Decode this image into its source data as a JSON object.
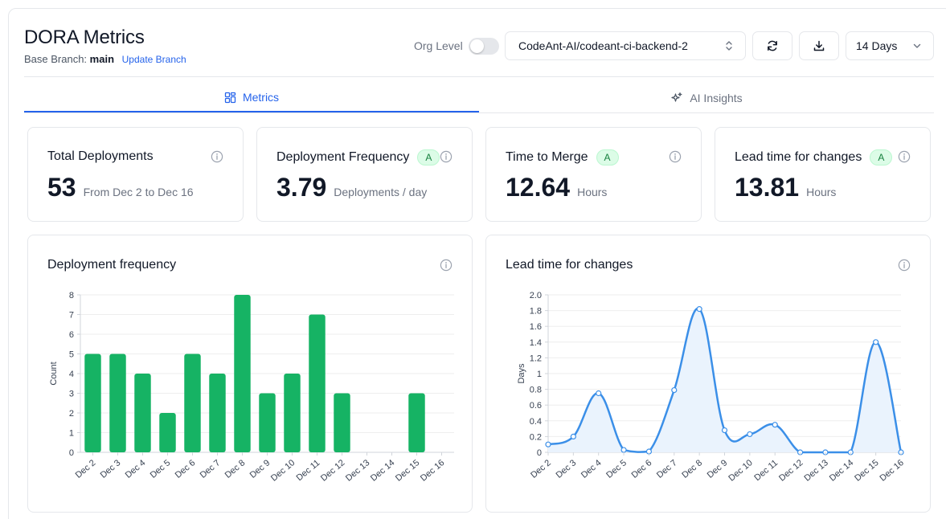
{
  "header": {
    "title": "DORA Metrics",
    "base_branch_label": "Base Branch:",
    "base_branch_value": "main",
    "update_branch_link": "Update Branch"
  },
  "controls": {
    "org_level_label": "Org Level",
    "org_level_on": false,
    "repo_selected": "CodeAnt-AI/codeant-ci-backend-2",
    "range_selected": "14 Days"
  },
  "tabs": [
    {
      "label": "Metrics",
      "active": true
    },
    {
      "label": "AI Insights",
      "active": false
    }
  ],
  "metrics": [
    {
      "title": "Total Deployments",
      "value": "53",
      "unit": "From Dec 2 to Dec 16",
      "badge": ""
    },
    {
      "title": "Deployment Frequency",
      "value": "3.79",
      "unit": "Deployments / day",
      "badge": "A"
    },
    {
      "title": "Time to Merge",
      "value": "12.64",
      "unit": "Hours",
      "badge": "A"
    },
    {
      "title": "Lead time for changes",
      "value": "13.81",
      "unit": "Hours",
      "badge": "A"
    }
  ],
  "colors": {
    "accent": "#2563eb",
    "bar": "#16b364",
    "line": "#3b8fe8",
    "line_fill": "#eaf3fd",
    "badge_bg": "#dcfce7",
    "badge_text": "#15803d"
  },
  "chart_data": [
    {
      "type": "bar",
      "title": "Deployment frequency",
      "xlabel": "",
      "ylabel": "Count",
      "categories": [
        "Dec 2",
        "Dec 3",
        "Dec 4",
        "Dec 5",
        "Dec 6",
        "Dec 7",
        "Dec 8",
        "Dec 9",
        "Dec 10",
        "Dec 11",
        "Dec 12",
        "Dec 13",
        "Dec 14",
        "Dec 15",
        "Dec 16"
      ],
      "values": [
        5,
        5,
        4,
        2,
        5,
        4,
        8,
        3,
        4,
        7,
        3,
        0,
        0,
        3,
        0
      ],
      "ylim": [
        0,
        8
      ],
      "yticks": [
        0,
        1,
        2,
        3,
        4,
        5,
        6,
        7,
        8
      ],
      "grid": true,
      "legend": "none"
    },
    {
      "type": "area",
      "title": "Lead time for changes",
      "xlabel": "",
      "ylabel": "Days",
      "categories": [
        "Dec 2",
        "Dec 3",
        "Dec 4",
        "Dec 5",
        "Dec 6",
        "Dec 7",
        "Dec 8",
        "Dec 9",
        "Dec 10",
        "Dec 11",
        "Dec 12",
        "Dec 13",
        "Dec 14",
        "Dec 15",
        "Dec 16"
      ],
      "values": [
        0.1,
        0.2,
        0.75,
        0.03,
        0.01,
        0.79,
        1.82,
        0.28,
        0.23,
        0.35,
        0.0,
        0.0,
        0.0,
        1.4,
        0.0
      ],
      "ylim": [
        0,
        2.0
      ],
      "yticks": [
        "0",
        "0.2",
        "0.4",
        "0.6",
        "0.8",
        "1",
        "1.2",
        "1.4",
        "1.6",
        "1.8",
        "2.0"
      ],
      "grid": true,
      "legend": "none"
    }
  ]
}
